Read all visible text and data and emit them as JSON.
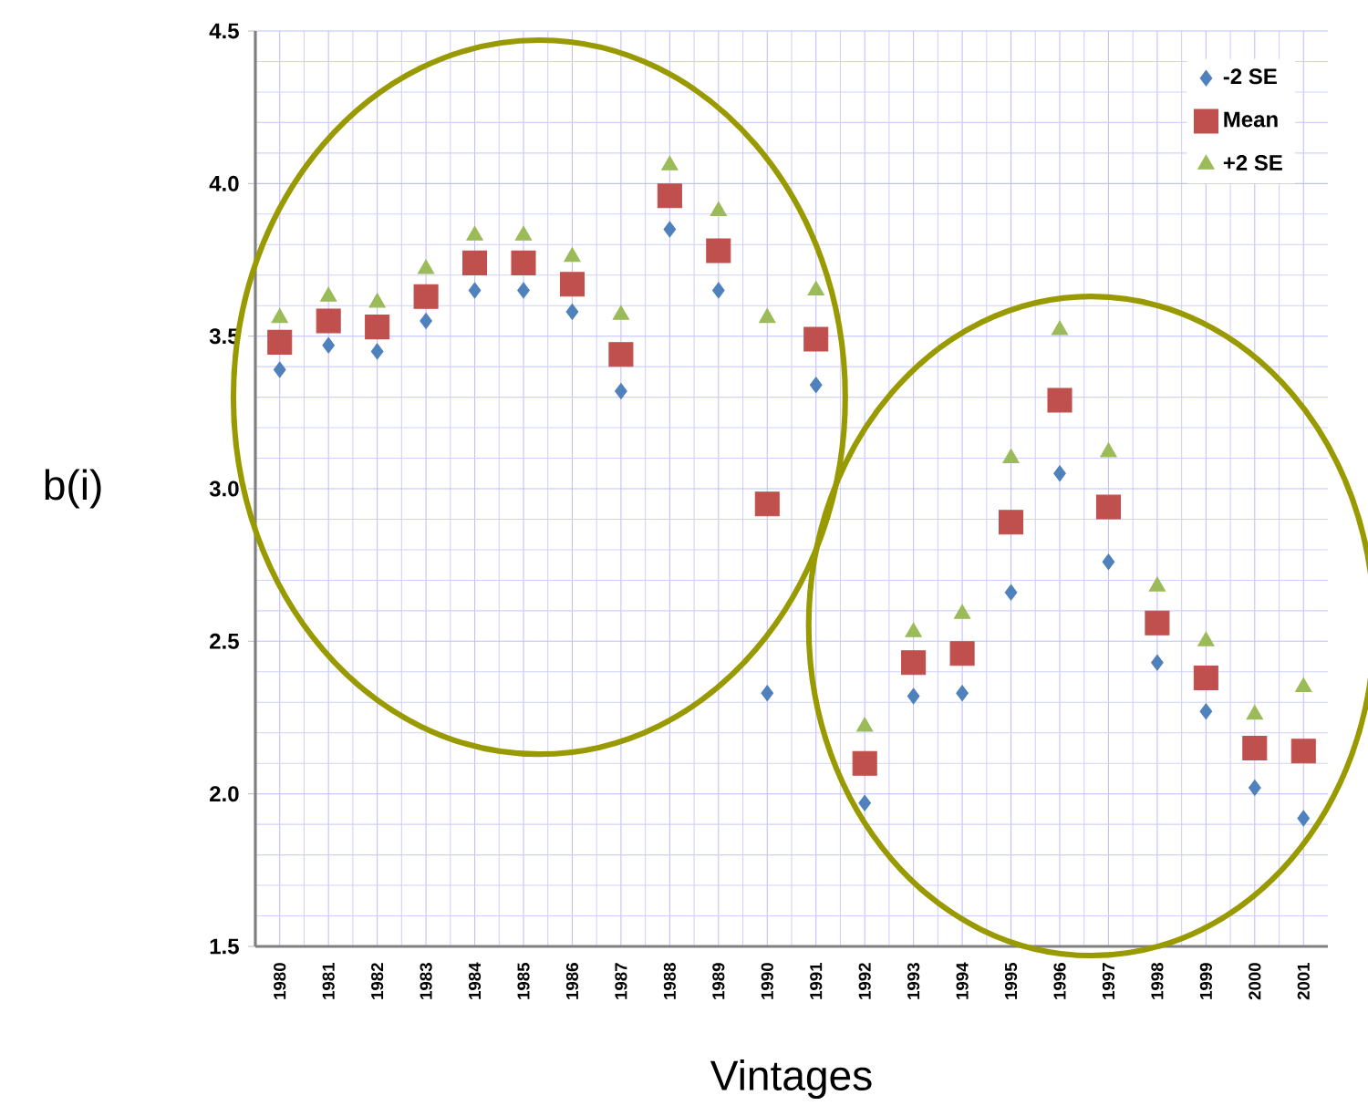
{
  "chart_data": {
    "type": "scatter",
    "xlabel": "Vintages",
    "ylabel": "b(i)",
    "categories": [
      "1980",
      "1981",
      "1982",
      "1983",
      "1984",
      "1985",
      "1986",
      "1987",
      "1988",
      "1989",
      "1990",
      "1991",
      "1992",
      "1993",
      "1994",
      "1995",
      "1996",
      "1997",
      "1998",
      "1999",
      "2000",
      "2001"
    ],
    "series": [
      {
        "name": "-2 SE",
        "color": "#4f81bd",
        "marker": "diamond",
        "values": [
          3.39,
          3.47,
          3.45,
          3.55,
          3.65,
          3.65,
          3.58,
          3.32,
          3.85,
          3.65,
          2.33,
          3.34,
          1.97,
          2.32,
          2.33,
          2.66,
          3.05,
          2.76,
          2.43,
          2.27,
          2.02,
          1.92
        ]
      },
      {
        "name": "Mean",
        "color": "#c0504d",
        "marker": "square",
        "values": [
          3.48,
          3.55,
          3.53,
          3.63,
          3.74,
          3.74,
          3.67,
          3.44,
          3.96,
          3.78,
          2.95,
          3.49,
          2.1,
          2.43,
          2.46,
          2.89,
          3.29,
          2.94,
          2.56,
          2.38,
          2.15,
          2.14
        ]
      },
      {
        "name": "+2 SE",
        "color": "#9bbb59",
        "marker": "triangle",
        "values": [
          3.56,
          3.63,
          3.61,
          3.72,
          3.83,
          3.83,
          3.76,
          3.57,
          4.06,
          3.91,
          3.56,
          3.65,
          2.22,
          2.53,
          2.59,
          3.1,
          3.52,
          3.12,
          2.68,
          2.5,
          2.26,
          2.35
        ]
      }
    ],
    "ylim": [
      1.5,
      4.5
    ],
    "yticks": [
      1.5,
      {
        "value": 2,
        "label": "2.0"
      },
      2.5,
      {
        "value": 3,
        "label": "3.0"
      },
      3.5,
      {
        "value": 4,
        "label": "4.0"
      },
      4.5
    ],
    "grid": true,
    "legend": "top right"
  }
}
